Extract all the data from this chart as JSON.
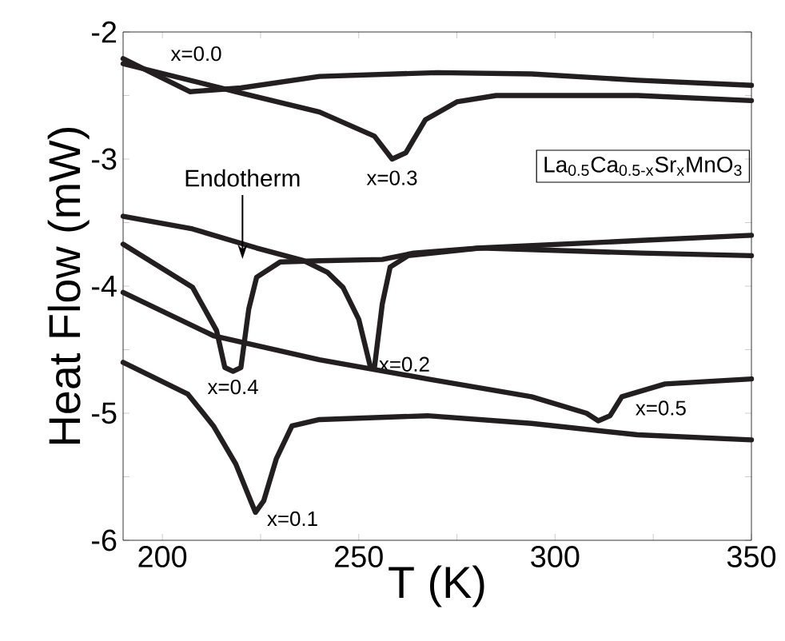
{
  "chart_data": {
    "type": "line",
    "xlabel": "T (K)",
    "ylabel": "Heat Flow (mW)",
    "xlim": [
      190,
      350
    ],
    "ylim": [
      -6,
      -2
    ],
    "xticks": [
      200,
      {
        "value": 225,
        "label": null
      },
      250,
      {
        "value": 275,
        "label": null
      },
      300,
      {
        "value": 325,
        "label": null
      },
      350
    ],
    "yticks": [
      -6,
      {
        "value": -5.5,
        "label": null
      },
      -5,
      {
        "value": -4.5,
        "label": null
      },
      -4,
      {
        "value": -3.5,
        "label": null
      },
      -3,
      {
        "value": -2.5,
        "label": null
      },
      -2
    ],
    "marker": "none",
    "line_style": "solid",
    "grid": false,
    "legend": false,
    "annotations": [
      "La$_{0.5}$Ca$_{0.5-x}$Sr$_{x}$MnO$_{3}$",
      "Endotherm"
    ],
    "series": [
      {
        "name": "x=0.0",
        "color": "#231f20",
        "x": [
          190,
          207,
          220,
          240,
          270,
          294,
          321,
          350
        ],
        "values": [
          -2.21,
          -2.47,
          -2.44,
          -2.35,
          -2.32,
          -2.33,
          -2.38,
          -2.42
        ]
      },
      {
        "name": "x=0.3",
        "color": "#231f20",
        "x": [
          190,
          220,
          240,
          254,
          258.5,
          262,
          267,
          275,
          285,
          321,
          350
        ],
        "values": [
          -2.25,
          -2.48,
          -2.63,
          -2.82,
          -3.0,
          -2.95,
          -2.69,
          -2.55,
          -2.5,
          -2.5,
          -2.54
        ]
      },
      {
        "name": "x=0.2",
        "color": "#231f20",
        "x": [
          190,
          207.7,
          224,
          236,
          242,
          246,
          250,
          253,
          254,
          256,
          258,
          262.6,
          281,
          322,
          350
        ],
        "values": [
          -3.45,
          -3.55,
          -3.7,
          -3.8,
          -3.89,
          -4.01,
          -4.26,
          -4.64,
          -4.64,
          -4.14,
          -3.85,
          -3.76,
          -3.7,
          -3.64,
          -3.6
        ]
      },
      {
        "name": "x=0.4",
        "color": "#231f20",
        "x": [
          190,
          207.7,
          213.8,
          215.9,
          218,
          220,
          222,
          224,
          230,
          240,
          256,
          264,
          281,
          322,
          350
        ],
        "values": [
          -3.67,
          -4.01,
          -4.35,
          -4.64,
          -4.67,
          -4.64,
          -4.18,
          -3.93,
          -3.81,
          -3.8,
          -3.79,
          -3.74,
          -3.7,
          -3.74,
          -3.76
        ]
      },
      {
        "name": "x=0.5",
        "color": "#231f20",
        "x": [
          190,
          213,
          240,
          267.5,
          294,
          308,
          311,
          314,
          317,
          328,
          350
        ],
        "values": [
          -4.05,
          -4.39,
          -4.58,
          -4.73,
          -4.87,
          -5.0,
          -5.06,
          -5.02,
          -4.87,
          -4.77,
          -4.73
        ]
      },
      {
        "name": "x=0.1",
        "color": "#231f20",
        "x": [
          190,
          206.5,
          213,
          218.7,
          222.5,
          223.7,
          225.8,
          229,
          233,
          240,
          267.5,
          294,
          321,
          350
        ],
        "values": [
          -4.6,
          -4.85,
          -5.1,
          -5.4,
          -5.69,
          -5.78,
          -5.69,
          -5.36,
          -5.1,
          -5.05,
          -5.02,
          -5.08,
          -5.17,
          -5.21
        ]
      }
    ]
  }
}
